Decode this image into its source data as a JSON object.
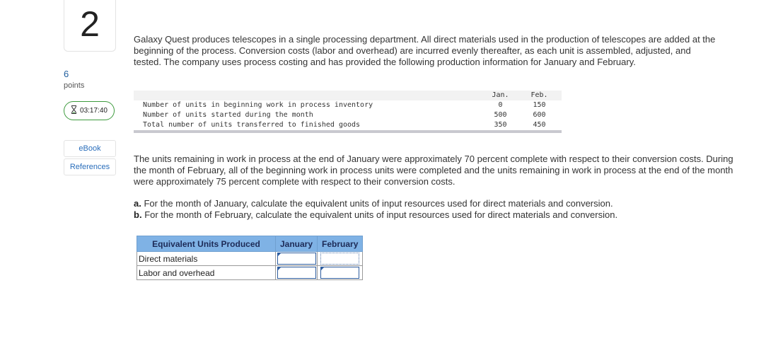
{
  "question": {
    "number": "2",
    "points": "6",
    "points_label": "points"
  },
  "timer": {
    "value": "03:17:40",
    "icon": "hourglass-icon"
  },
  "sidebar": {
    "ebook": "eBook",
    "references": "References"
  },
  "intro": "Galaxy Quest produces telescopes in a single processing department. All direct materials used in the production of telescopes are added at the beginning of the process. Conversion costs (labor and overhead) are incurred evenly thereafter, as each unit is assembled, adjusted, and tested. The company uses process costing and has provided the following production information for January and February.",
  "production_table": {
    "headers": [
      "Jan.",
      "Feb."
    ],
    "rows": [
      {
        "label": "Number of units in beginning work in process inventory",
        "jan": "0",
        "feb": "150"
      },
      {
        "label": "Number of units started during the month",
        "jan": "500",
        "feb": "600"
      },
      {
        "label": "Total number of units transferred to finished goods",
        "jan": "350",
        "feb": "450"
      }
    ]
  },
  "paragraph2": "The units remaining in work in process at the end of January were approximately 70 percent complete with respect to their conversion costs. During the month of February, all of the beginning work in process units were completed and the units remaining in work in process at the end of the month were approximately 75 percent complete with respect to their conversion costs.",
  "parts": {
    "a_label": "a.",
    "a_text": "For the month of January, calculate the equivalent units of input resources used for direct materials and conversion.",
    "b_label": "b.",
    "b_text": "For the month of February, calculate the equivalent units of input resources used for direct materials and conversion."
  },
  "answer_table": {
    "header": "Equivalent Units Produced",
    "col_jan": "January",
    "col_feb": "February",
    "row1": "Direct materials",
    "row2": "Labor and overhead",
    "values": {
      "dm_jan": "",
      "dm_feb": "",
      "lo_jan": "",
      "lo_feb": ""
    }
  }
}
